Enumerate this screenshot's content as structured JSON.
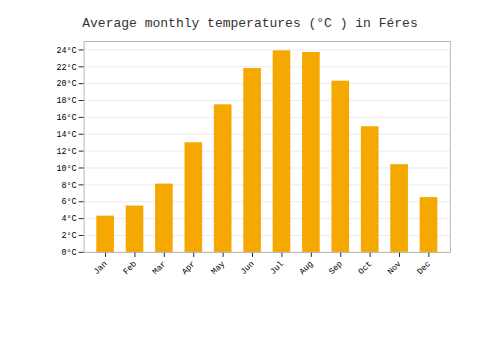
{
  "chart_data": {
    "type": "bar",
    "title": "Average monthly temperatures (°C ) in Féres",
    "categories": [
      "Jan",
      "Feb",
      "Mar",
      "Apr",
      "May",
      "Jun",
      "Jul",
      "Aug",
      "Sep",
      "Oct",
      "Nov",
      "Dec"
    ],
    "values": [
      4.3,
      5.5,
      8.1,
      13.0,
      17.5,
      21.8,
      23.9,
      23.7,
      20.3,
      14.9,
      10.4,
      6.5
    ],
    "color": "#F5A800",
    "ylim": [
      0,
      25
    ],
    "yticks": [
      {
        "value": 0,
        "label": "0°C"
      },
      {
        "value": 2,
        "label": "2°C"
      },
      {
        "value": 4,
        "label": "4°C"
      },
      {
        "value": 6,
        "label": "6°C"
      },
      {
        "value": 8,
        "label": "8°C"
      },
      {
        "value": 10,
        "label": "10°C"
      },
      {
        "value": 12,
        "label": "12°C"
      },
      {
        "value": 14,
        "label": "14°C"
      },
      {
        "value": 16,
        "label": "16°C"
      },
      {
        "value": 18,
        "label": "18°C"
      },
      {
        "value": 20,
        "label": "20°C"
      },
      {
        "value": 22,
        "label": "22°C"
      },
      {
        "value": 24,
        "label": "24°C"
      }
    ],
    "grid": true
  }
}
